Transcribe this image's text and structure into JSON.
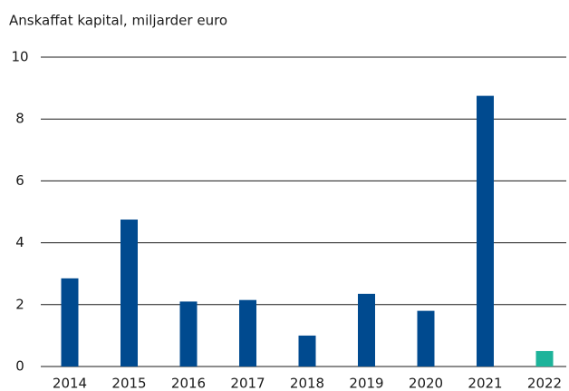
{
  "chart_data": {
    "type": "bar",
    "title": "Anskaffat kapital, miljarder euro",
    "categories": [
      "2014",
      "2015",
      "2016",
      "2017",
      "2018",
      "2019",
      "2020",
      "2021",
      "2022"
    ],
    "values": [
      2.85,
      4.75,
      2.1,
      2.15,
      1.0,
      2.35,
      1.8,
      8.75,
      0.5
    ],
    "colors": [
      "#004a8f",
      "#004a8f",
      "#004a8f",
      "#004a8f",
      "#004a8f",
      "#004a8f",
      "#004a8f",
      "#004a8f",
      "#1db39a"
    ],
    "ylim": [
      0,
      10
    ],
    "yticks": [
      0,
      2,
      4,
      6,
      8,
      10
    ],
    "grid": true
  }
}
